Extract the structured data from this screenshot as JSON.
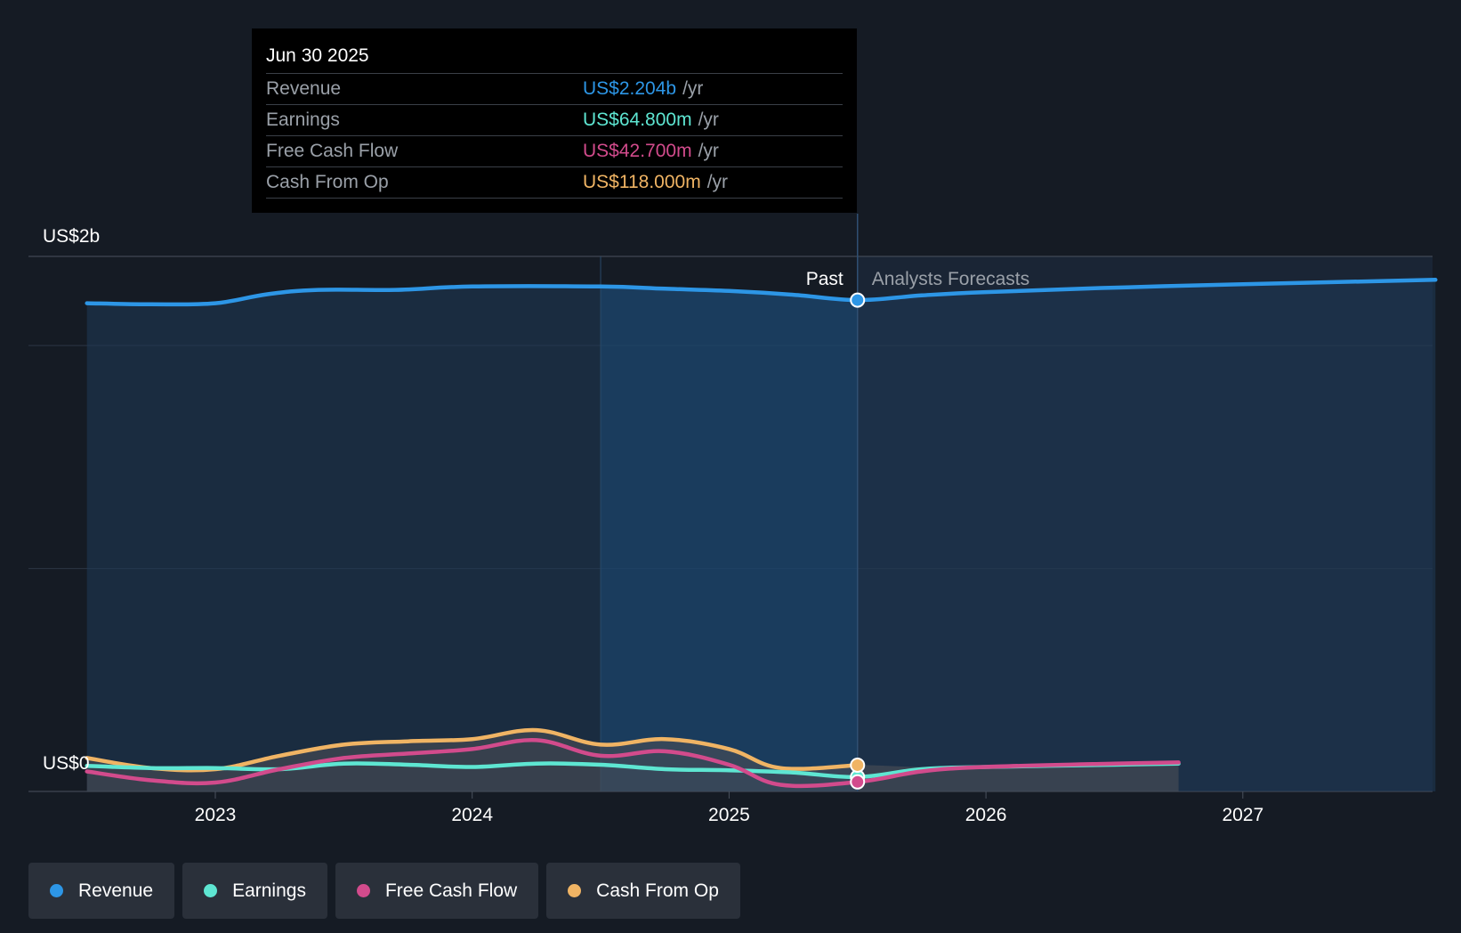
{
  "tooltip": {
    "date": "Jun 30 2025",
    "rows": [
      {
        "label": "Revenue",
        "value": "US$2.204b",
        "unit": "/yr",
        "color": "#2d96e6"
      },
      {
        "label": "Earnings",
        "value": "US$64.800m",
        "unit": "/yr",
        "color": "#5ee6d2"
      },
      {
        "label": "Free Cash Flow",
        "value": "US$42.700m",
        "unit": "/yr",
        "color": "#d24b8c"
      },
      {
        "label": "Cash From Op",
        "value": "US$118.000m",
        "unit": "/yr",
        "color": "#f0b464"
      }
    ]
  },
  "chart_data": {
    "type": "line",
    "y_axis_labels": {
      "top": "US$2b",
      "bottom": "US$0"
    },
    "ylim": [
      0,
      2.4
    ],
    "xlim": [
      2022.55,
      2027.75
    ],
    "x_ticks": [
      {
        "x": 2023,
        "label": "2023"
      },
      {
        "x": 2024,
        "label": "2024"
      },
      {
        "x": 2025,
        "label": "2025"
      },
      {
        "x": 2026,
        "label": "2026"
      },
      {
        "x": 2027,
        "label": "2027"
      }
    ],
    "past_label": "Past",
    "forecast_label": "Analysts Forecasts",
    "divider_x": 2025.5,
    "highlight_start_x": 2024.5,
    "grid": true,
    "series": [
      {
        "name": "Revenue",
        "color": "#2d96e6",
        "points": [
          [
            2022.5,
            2.19
          ],
          [
            2022.75,
            2.185
          ],
          [
            2023.0,
            2.19
          ],
          [
            2023.2,
            2.23
          ],
          [
            2023.4,
            2.25
          ],
          [
            2023.7,
            2.25
          ],
          [
            2024.0,
            2.265
          ],
          [
            2024.5,
            2.265
          ],
          [
            2024.75,
            2.255
          ],
          [
            2025.0,
            2.245
          ],
          [
            2025.25,
            2.228
          ],
          [
            2025.5,
            2.204
          ],
          [
            2025.75,
            2.225
          ],
          [
            2026.0,
            2.24
          ],
          [
            2026.5,
            2.26
          ],
          [
            2027.0,
            2.275
          ],
          [
            2027.75,
            2.295
          ]
        ]
      },
      {
        "name": "Earnings",
        "color": "#5ee6d2",
        "points": [
          [
            2022.5,
            0.115
          ],
          [
            2022.75,
            0.105
          ],
          [
            2023.0,
            0.105
          ],
          [
            2023.25,
            0.1
          ],
          [
            2023.5,
            0.125
          ],
          [
            2023.75,
            0.12
          ],
          [
            2024.0,
            0.11
          ],
          [
            2024.25,
            0.125
          ],
          [
            2024.5,
            0.12
          ],
          [
            2024.75,
            0.1
          ],
          [
            2025.0,
            0.095
          ],
          [
            2025.25,
            0.085
          ],
          [
            2025.5,
            0.0648
          ],
          [
            2025.75,
            0.1
          ],
          [
            2026.0,
            0.11
          ],
          [
            2026.5,
            0.12
          ],
          [
            2026.75,
            0.125
          ]
        ]
      },
      {
        "name": "Free Cash Flow",
        "color": "#d24b8c",
        "points": [
          [
            2022.5,
            0.09
          ],
          [
            2022.75,
            0.05
          ],
          [
            2023.0,
            0.04
          ],
          [
            2023.25,
            0.1
          ],
          [
            2023.5,
            0.15
          ],
          [
            2023.75,
            0.17
          ],
          [
            2024.0,
            0.19
          ],
          [
            2024.25,
            0.23
          ],
          [
            2024.5,
            0.16
          ],
          [
            2024.75,
            0.18
          ],
          [
            2025.0,
            0.12
          ],
          [
            2025.2,
            0.03
          ],
          [
            2025.5,
            0.0427
          ],
          [
            2025.75,
            0.09
          ],
          [
            2026.0,
            0.11
          ],
          [
            2026.5,
            0.125
          ],
          [
            2026.75,
            0.13
          ]
        ]
      },
      {
        "name": "Cash From Op",
        "color": "#f0b464",
        "points": [
          [
            2022.5,
            0.15
          ],
          [
            2022.75,
            0.105
          ],
          [
            2023.0,
            0.1
          ],
          [
            2023.25,
            0.16
          ],
          [
            2023.5,
            0.21
          ],
          [
            2023.75,
            0.225
          ],
          [
            2024.0,
            0.235
          ],
          [
            2024.25,
            0.275
          ],
          [
            2024.5,
            0.21
          ],
          [
            2024.75,
            0.235
          ],
          [
            2025.0,
            0.19
          ],
          [
            2025.2,
            0.105
          ],
          [
            2025.5,
            0.118
          ]
        ]
      }
    ]
  },
  "legend": [
    {
      "label": "Revenue",
      "color": "#2d96e6"
    },
    {
      "label": "Earnings",
      "color": "#5ee6d2"
    },
    {
      "label": "Free Cash Flow",
      "color": "#d24b8c"
    },
    {
      "label": "Cash From Op",
      "color": "#f0b464"
    }
  ]
}
